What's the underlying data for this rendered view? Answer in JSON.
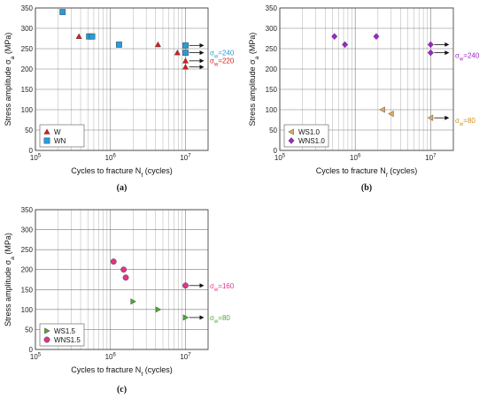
{
  "chart_data": [
    {
      "type": "scatter",
      "panel_label": "(a)",
      "xlabel": "Cycles to fracture N_f (cycles)",
      "ylabel": "Stress amplitude σ_a (MPa)",
      "xscale": "log",
      "xlim": [
        100000,
        20000000
      ],
      "ylim": [
        0,
        350
      ],
      "yticks": [
        0,
        50,
        100,
        150,
        200,
        250,
        300,
        350
      ],
      "xticks": [
        {
          "value": 100000,
          "base": "10",
          "exp": "5"
        },
        {
          "value": 1000000,
          "base": "10",
          "exp": "6"
        },
        {
          "value": 10000000,
          "base": "10",
          "exp": "7"
        }
      ],
      "grid": true,
      "legend_position": "bottom-left",
      "series": [
        {
          "name": "W",
          "marker": "triangle-up",
          "color": "#d81e1e",
          "points": [
            {
              "x": 380000,
              "y": 280
            },
            {
              "x": 4300000,
              "y": 260
            },
            {
              "x": 7800000,
              "y": 240
            },
            {
              "x": 10000000,
              "y": 220,
              "runout": true
            },
            {
              "x": 10000000,
              "y": 205,
              "runout": true
            }
          ]
        },
        {
          "name": "WN",
          "marker": "square",
          "color": "#2a9bd6",
          "points": [
            {
              "x": 230000,
              "y": 340
            },
            {
              "x": 520000,
              "y": 280
            },
            {
              "x": 570000,
              "y": 280
            },
            {
              "x": 1300000,
              "y": 260
            },
            {
              "x": 10000000,
              "y": 258,
              "runout": true
            },
            {
              "x": 10000000,
              "y": 240,
              "runout": true
            }
          ]
        }
      ],
      "annotations": [
        {
          "text": "σ_w=240",
          "color": "#2a9bd6",
          "y": 240
        },
        {
          "text": "σ_w=220",
          "color": "#d81e1e",
          "y": 221
        }
      ]
    },
    {
      "type": "scatter",
      "panel_label": "(b)",
      "xlabel": "Cycles to fracture N_f (cycles)",
      "ylabel": "Stress amplitude σ_a (MPa)",
      "xscale": "log",
      "xlim": [
        100000,
        20000000
      ],
      "ylim": [
        0,
        350
      ],
      "yticks": [
        0,
        50,
        100,
        150,
        200,
        250,
        300,
        350
      ],
      "xticks": [
        {
          "value": 100000,
          "base": "10",
          "exp": "5"
        },
        {
          "value": 1000000,
          "base": "10",
          "exp": "6"
        },
        {
          "value": 10000000,
          "base": "10",
          "exp": "7"
        }
      ],
      "grid": true,
      "legend_position": "bottom-left",
      "series": [
        {
          "name": "WS1.0",
          "marker": "triangle-left",
          "color": "#e3a85b",
          "points": [
            {
              "x": 2300000,
              "y": 100
            },
            {
              "x": 3000000,
              "y": 90
            },
            {
              "x": 10000000,
              "y": 80,
              "runout": true
            }
          ]
        },
        {
          "name": "WNS1.0",
          "marker": "diamond",
          "color": "#9b27c7",
          "points": [
            {
              "x": 530000,
              "y": 280
            },
            {
              "x": 730000,
              "y": 260
            },
            {
              "x": 1900000,
              "y": 280
            },
            {
              "x": 10000000,
              "y": 260,
              "runout": true
            },
            {
              "x": 10000000,
              "y": 240,
              "runout": true
            }
          ]
        }
      ],
      "annotations": [
        {
          "text": "σ_w=240",
          "color": "#9b27c7",
          "y": 234
        },
        {
          "text": "σ_w=80",
          "color": "#d4901a",
          "y": 74
        }
      ]
    },
    {
      "type": "scatter",
      "panel_label": "(c)",
      "xlabel": "Cycles to fracture N_f (cycles)",
      "ylabel": "Stress amplitude σ_a (MPa)",
      "xscale": "log",
      "xlim": [
        100000,
        20000000
      ],
      "ylim": [
        0,
        350
      ],
      "yticks": [
        0,
        50,
        100,
        150,
        200,
        250,
        300,
        350
      ],
      "xticks": [
        {
          "value": 100000,
          "base": "10",
          "exp": "5"
        },
        {
          "value": 1000000,
          "base": "10",
          "exp": "6"
        },
        {
          "value": 10000000,
          "base": "10",
          "exp": "7"
        }
      ],
      "grid": true,
      "legend_position": "bottom-left",
      "series": [
        {
          "name": "WS1.5",
          "marker": "triangle-right",
          "color": "#4aa832",
          "points": [
            {
              "x": 2000000,
              "y": 120
            },
            {
              "x": 4300000,
              "y": 100
            },
            {
              "x": 10000000,
              "y": 80,
              "runout": true
            }
          ]
        },
        {
          "name": "WNS1.5",
          "marker": "circle",
          "color": "#e0358a",
          "points": [
            {
              "x": 1100000,
              "y": 220
            },
            {
              "x": 1500000,
              "y": 200
            },
            {
              "x": 1600000,
              "y": 180
            },
            {
              "x": 10000000,
              "y": 160,
              "runout": true
            }
          ]
        }
      ],
      "annotations": [
        {
          "text": "σ_w=160",
          "color": "#e0358a",
          "y": 160
        },
        {
          "text": "σ_w=80",
          "color": "#4aa832",
          "y": 80
        }
      ]
    }
  ]
}
